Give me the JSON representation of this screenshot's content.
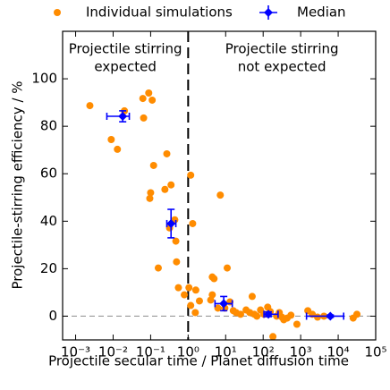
{
  "chart_data": {
    "type": "scatter",
    "xlabel": "Projectile secular time / Planet diffusion time",
    "ylabel": "Projectile-stirring efficiency / %",
    "xscale": "log",
    "xlim": [
      0.00045,
      100000
    ],
    "ylim": [
      -10,
      120
    ],
    "xticks": [
      {
        "value": 0.001,
        "label": "10⁻³"
      },
      {
        "value": 0.01,
        "label": "10⁻²"
      },
      {
        "value": 0.1,
        "label": "10⁻¹"
      },
      {
        "value": 1,
        "label": "10⁰"
      },
      {
        "value": 10,
        "label": "10¹"
      },
      {
        "value": 100,
        "label": "10²"
      },
      {
        "value": 1000,
        "label": "10³"
      },
      {
        "value": 10000,
        "label": "10⁴"
      },
      {
        "value": 100000,
        "label": "10⁵"
      }
    ],
    "yticks": [
      0,
      20,
      40,
      60,
      80,
      100
    ],
    "legend": "top",
    "annotations": [
      {
        "lines": [
          "Projectile stirring",
          "expected"
        ],
        "side": "left"
      },
      {
        "lines": [
          "Projectile stirring",
          "not expected"
        ],
        "side": "right"
      }
    ],
    "vline": 1,
    "hline": 0,
    "series": [
      {
        "name": "Individual simulations",
        "color": "#ff8c00",
        "x": [
          0.0024,
          0.0089,
          0.013,
          0.02,
          0.062,
          0.065,
          0.089,
          0.11,
          0.12,
          0.1,
          0.095,
          0.16,
          0.24,
          0.27,
          0.35,
          0.32,
          0.44,
          0.47,
          0.49,
          0.55,
          0.79,
          1.05,
          1.17,
          1.32,
          1.17,
          1.55,
          2.0,
          1.6,
          4.0,
          4.4,
          4.9,
          4.4,
          7.2,
          6.2,
          9.5,
          11,
          13,
          16,
          19,
          25,
          35,
          44,
          51,
          58,
          68,
          85,
          105,
          132,
          155,
          182,
          229,
          269,
          316,
          355,
          437,
          550,
          794,
          1550,
          2040,
          2820,
          4170,
          25100,
          31600
        ],
        "values": [
          88.7,
          74.4,
          70.3,
          86.5,
          91.7,
          83.5,
          94,
          91,
          63.5,
          52,
          49.6,
          20.3,
          53.4,
          68.4,
          55.3,
          37.2,
          40.6,
          31.6,
          22.9,
          12,
          9,
          12,
          59.4,
          39,
          4.5,
          1.5,
          6.4,
          11,
          6.8,
          16.5,
          15.8,
          9,
          51,
          3.4,
          3.4,
          20.3,
          6,
          2.3,
          1.5,
          0.8,
          2.6,
          1.5,
          8.3,
          0.8,
          0,
          2.6,
          0.8,
          3.8,
          1.9,
          -8.6,
          0,
          1.5,
          -0.4,
          -1.5,
          -0.8,
          0.4,
          -3.4,
          2.3,
          0.8,
          -0.4,
          0,
          -0.8,
          0.8
        ]
      },
      {
        "name": "Median",
        "color": "#0000ff",
        "x": [
          0.018,
          0.35,
          8.9,
          138,
          6170
        ],
        "x_lower": [
          0.0068,
          0.27,
          5.2,
          105,
          1430
        ],
        "x_upper": [
          0.027,
          0.47,
          15,
          250,
          14000
        ],
        "values": [
          84.2,
          39,
          5.3,
          0.8,
          0
        ],
        "y_err": [
          2.3,
          6,
          3,
          1,
          0.5
        ]
      }
    ]
  }
}
